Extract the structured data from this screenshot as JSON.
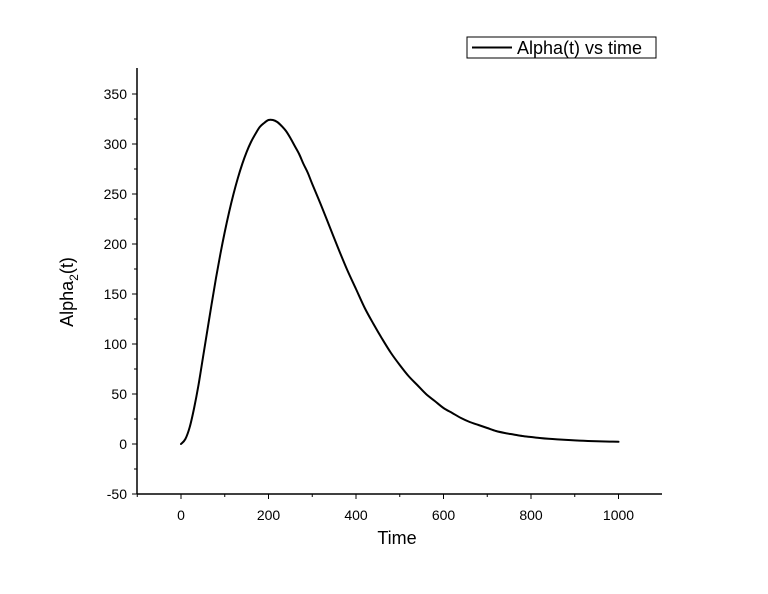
{
  "chart_data": {
    "type": "line",
    "xlabel": "Time",
    "ylabel": "Alpha2(t)",
    "ylabel_parts": {
      "base": "Alpha",
      "sub": "2",
      "tail": "(t)"
    },
    "xlim": [
      -100,
      1100
    ],
    "ylim": [
      -50,
      375
    ],
    "xticks": [
      0,
      200,
      400,
      600,
      800,
      1000
    ],
    "yticks": [
      -50,
      0,
      50,
      100,
      150,
      200,
      250,
      300,
      350
    ],
    "grid": false,
    "legend": {
      "position": "top-right"
    },
    "series": [
      {
        "name": "Alpha(t) vs time",
        "color": "#000000",
        "x": [
          0,
          10,
          20,
          30,
          40,
          50,
          60,
          70,
          80,
          90,
          100,
          110,
          120,
          130,
          140,
          150,
          160,
          170,
          180,
          190,
          200,
          210,
          220,
          230,
          240,
          250,
          260,
          270,
          280,
          290,
          300,
          320,
          340,
          360,
          380,
          400,
          420,
          440,
          460,
          480,
          500,
          520,
          540,
          560,
          580,
          600,
          620,
          640,
          660,
          680,
          700,
          720,
          740,
          760,
          780,
          800,
          820,
          840,
          860,
          880,
          900,
          920,
          940,
          960,
          980,
          1000
        ],
        "y": [
          0,
          5,
          17,
          36,
          59,
          86,
          113,
          140,
          166,
          190,
          212,
          232,
          250,
          266,
          280,
          292,
          302,
          310,
          317,
          321,
          324,
          324,
          322,
          318,
          313,
          306,
          298,
          290,
          280,
          271,
          260,
          239,
          217,
          195,
          174,
          155,
          136,
          120,
          105,
          91,
          79,
          68,
          59,
          50,
          43,
          36,
          31,
          26,
          22,
          19,
          16,
          13,
          11,
          9.5,
          8,
          7,
          6,
          5.2,
          4.6,
          4.1,
          3.6,
          3.2,
          2.9,
          2.6,
          2.4,
          2.2
        ]
      }
    ]
  }
}
